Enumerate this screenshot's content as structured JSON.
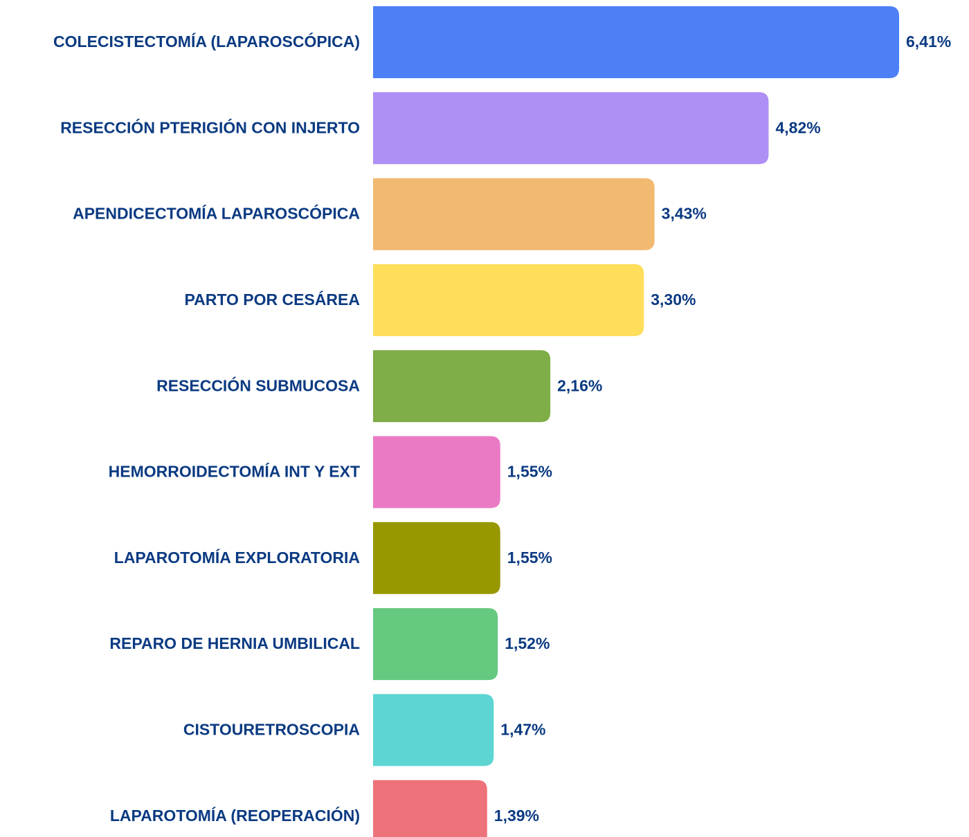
{
  "chart_data": {
    "type": "bar",
    "orientation": "horizontal",
    "categories": [
      "COLECISTECTOMÍA (LAPAROSCÓPICA)",
      "RESECCIÓN PTERIGIÓN CON INJERTO",
      "APENDICECTOMÍA LAPAROSCÓPICA",
      "PARTO POR CESÁREA",
      "RESECCIÓN SUBMUCOSA",
      "HEMORROIDECTOMÍA INT Y EXT",
      "LAPAROTOMÍA EXPLORATORIA",
      "REPARO DE HERNIA UMBILICAL",
      "CISTOURETROSCOPIA",
      "LAPAROTOMÍA (REOPERACIÓN)"
    ],
    "values": [
      6.41,
      4.82,
      3.43,
      3.3,
      2.16,
      1.55,
      1.55,
      1.52,
      1.47,
      1.39
    ],
    "value_labels": [
      "6,41%",
      "4,82%",
      "3,43%",
      "3,30%",
      "2,16%",
      "1,55%",
      "1,55%",
      "1,52%",
      "1,47%",
      "1,39%"
    ],
    "colors": [
      "#4d7ff7",
      "#ae8ff5",
      "#f2b970",
      "#ffde5a",
      "#7fad47",
      "#ea7ac4",
      "#979800",
      "#65c97f",
      "#5dd5d3",
      "#ee727a"
    ]
  }
}
